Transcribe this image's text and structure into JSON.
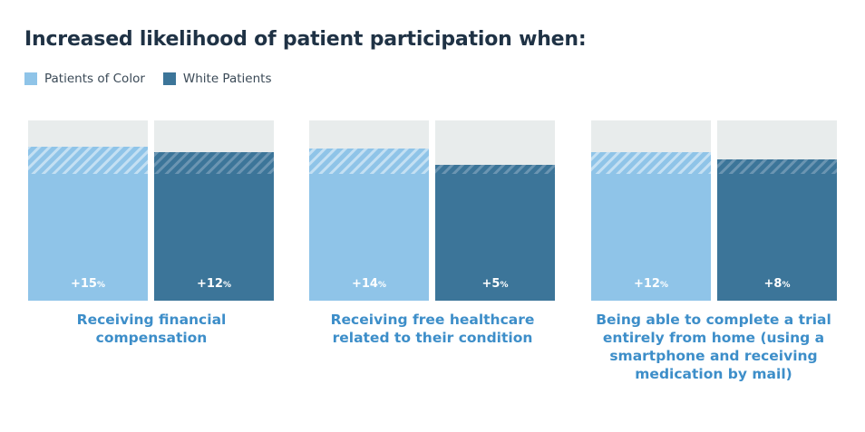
{
  "header": {
    "title": "Increased likelihood of patient participation when:"
  },
  "legend": [
    {
      "label": "Patients of Color",
      "color": "#8fc4e8"
    },
    {
      "label": "White Patients",
      "color": "#3c7599"
    }
  ],
  "colors": {
    "background_bar": "#e8ecec",
    "poc_hatch_stripe": "#c4e0f3",
    "white_hatch_stripe": "#6b95b2",
    "category_label": "#3d8ec9"
  },
  "chart_data": {
    "type": "bar",
    "title": "Increased likelihood of patient participation when:",
    "categories": [
      "Receiving financial compensation",
      "Receiving free healthcare related to their condition",
      "Being able to complete a trial entirely from home (using a smartphone and receiving medication by mail)"
    ],
    "series": [
      {
        "name": "Patients of Color",
        "values": [
          15,
          14,
          12
        ],
        "labels": [
          "+15",
          "+14",
          "+12"
        ]
      },
      {
        "name": "White Patients",
        "values": [
          12,
          5,
          8
        ],
        "labels": [
          "+12",
          "+5",
          "+8"
        ]
      }
    ],
    "value_suffix": "%",
    "ylim": [
      0,
      25
    ],
    "grid": false,
    "legend_position": "top-left"
  }
}
